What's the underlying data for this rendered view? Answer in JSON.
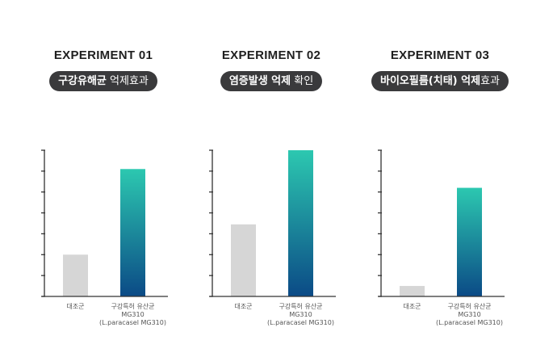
{
  "chart_data": [
    {
      "type": "bar",
      "title": "EXPERIMENT 01",
      "subtitle_bold": "구강유해균",
      "subtitle_light": " 억제효과",
      "categories": [
        "대조군",
        "구강특허 유산균"
      ],
      "category_sublines": [
        [],
        [
          "MG310",
          "(L.paracasel MG310)"
        ]
      ],
      "values": [
        2,
        6.1
      ],
      "ylim": [
        0,
        7
      ],
      "yticks": 7,
      "bar_styles": [
        "gray",
        "gradient"
      ]
    },
    {
      "type": "bar",
      "title": "EXPERIMENT 02",
      "subtitle_bold": "염증발생 억제",
      "subtitle_light": " 확인",
      "categories": [
        "대조군",
        "구강특허 유산균"
      ],
      "category_sublines": [
        [],
        [
          "MG310",
          "(L.paracasel MG310)"
        ]
      ],
      "values": [
        3.45,
        7
      ],
      "ylim": [
        0,
        7
      ],
      "yticks": 7,
      "bar_styles": [
        "gray",
        "gradient"
      ]
    },
    {
      "type": "bar",
      "title": "EXPERIMENT 03",
      "subtitle_bold": "바이오필름(치태) 억제",
      "subtitle_light": "효과",
      "categories": [
        "대조군",
        "구강특허 유산균"
      ],
      "category_sublines": [
        [],
        [
          "MG310",
          "(L.paracasel MG310)"
        ]
      ],
      "values": [
        0.5,
        5.2
      ],
      "ylim": [
        0,
        7
      ],
      "yticks": 7,
      "bar_styles": [
        "gray",
        "gradient"
      ]
    }
  ],
  "colors": {
    "gray_bar": "#d6d6d6",
    "gradient_top": "#2cc8b0",
    "gradient_bottom": "#0b4a86",
    "axis": "#333333",
    "pill_bg": "#3a3a3c"
  }
}
